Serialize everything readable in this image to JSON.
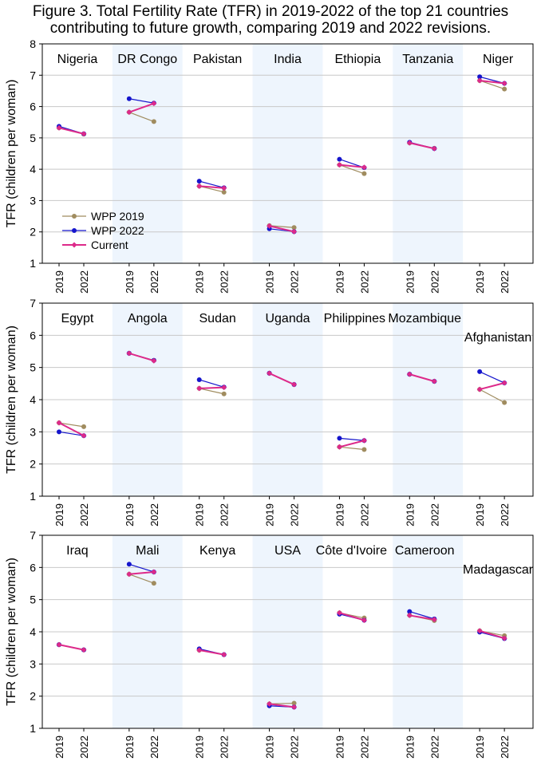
{
  "figure": {
    "title_line1": "Figure 3. Total Fertility Rate (TFR) in 2019-2022 of the top 21 countries",
    "title_line2": "contributing to future growth, comparing 2019 and 2022 revisions."
  },
  "colors": {
    "wpp2019": "#a08c5f",
    "wpp2022": "#1515cc",
    "current": "#dd2a8a",
    "band": "#eef5fd",
    "grid": "#c8c8c8",
    "axis": "#000000"
  },
  "chart_data": [
    {
      "type": "line",
      "ylabel": "TFR (children per woman)",
      "ylim": [
        1,
        8
      ],
      "yticks": [
        "1",
        "2",
        "3",
        "4",
        "5",
        "6",
        "7",
        "8"
      ],
      "x_tick_labels": [
        "2019",
        "2022"
      ],
      "legend": [
        "WPP 2019",
        "WPP 2022",
        "Current"
      ],
      "legend_position": "lower-left",
      "countries": [
        {
          "name": "Nigeria",
          "wpp2019": [
            5.32,
            5.12
          ],
          "wpp2022": [
            5.37,
            5.13
          ],
          "current": [
            5.32,
            5.13
          ]
        },
        {
          "name": "DR Congo",
          "wpp2019": [
            5.82,
            5.52
          ],
          "wpp2022": [
            6.25,
            6.11
          ],
          "current": [
            5.82,
            6.1
          ]
        },
        {
          "name": "Pakistan",
          "wpp2019": [
            3.46,
            3.27
          ],
          "wpp2022": [
            3.62,
            3.41
          ],
          "current": [
            3.46,
            3.4
          ]
        },
        {
          "name": "India",
          "wpp2019": [
            2.2,
            2.14
          ],
          "wpp2022": [
            2.1,
            2.01
          ],
          "current": [
            2.19,
            2.01
          ]
        },
        {
          "name": "Ethiopia",
          "wpp2019": [
            4.14,
            3.86
          ],
          "wpp2022": [
            4.32,
            4.05
          ],
          "current": [
            4.14,
            4.06
          ]
        },
        {
          "name": "Tanzania",
          "wpp2019": [
            4.84,
            4.67
          ],
          "wpp2022": [
            4.86,
            4.66
          ],
          "current": [
            4.84,
            4.66
          ]
        },
        {
          "name": "Niger",
          "wpp2019": [
            6.83,
            6.56
          ],
          "wpp2022": [
            6.95,
            6.74
          ],
          "current": [
            6.83,
            6.74
          ]
        }
      ]
    },
    {
      "type": "line",
      "ylabel": "TFR (children per woman)",
      "ylim": [
        1,
        7
      ],
      "yticks": [
        "1",
        "2",
        "3",
        "4",
        "5",
        "6",
        "7"
      ],
      "x_tick_labels": [
        "2019",
        "2022"
      ],
      "countries": [
        {
          "name": "Egypt",
          "wpp2019": [
            3.28,
            3.16
          ],
          "wpp2022": [
            3.0,
            2.88
          ],
          "current": [
            3.28,
            2.88
          ]
        },
        {
          "name": "Angola",
          "wpp2019": [
            5.44,
            5.22
          ],
          "wpp2022": [
            5.44,
            5.22
          ],
          "current": [
            5.44,
            5.21
          ]
        },
        {
          "name": "Sudan",
          "wpp2019": [
            4.35,
            4.18
          ],
          "wpp2022": [
            4.62,
            4.39
          ],
          "current": [
            4.35,
            4.38
          ]
        },
        {
          "name": "Uganda",
          "wpp2019": [
            4.82,
            4.47
          ],
          "wpp2022": [
            4.82,
            4.47
          ],
          "current": [
            4.82,
            4.47
          ]
        },
        {
          "name": "Philippines",
          "wpp2019": [
            2.53,
            2.45
          ],
          "wpp2022": [
            2.8,
            2.73
          ],
          "current": [
            2.53,
            2.73
          ]
        },
        {
          "name": "Mozambique",
          "wpp2019": [
            4.79,
            4.57
          ],
          "wpp2022": [
            4.79,
            4.57
          ],
          "current": [
            4.79,
            4.57
          ]
        },
        {
          "name": "Afghanistan",
          "wpp2019": [
            4.32,
            3.91
          ],
          "wpp2022": [
            4.87,
            4.52
          ],
          "current": [
            4.32,
            4.52
          ]
        }
      ]
    },
    {
      "type": "line",
      "ylabel": "TFR (children per woman)",
      "ylim": [
        1,
        7
      ],
      "yticks": [
        "1",
        "2",
        "3",
        "4",
        "5",
        "6",
        "7"
      ],
      "x_tick_labels": [
        "2019",
        "2022"
      ],
      "countries": [
        {
          "name": "Iraq",
          "wpp2019": [
            3.6,
            3.44
          ],
          "wpp2022": [
            3.6,
            3.44
          ],
          "current": [
            3.6,
            3.44
          ]
        },
        {
          "name": "Mali",
          "wpp2019": [
            5.79,
            5.51
          ],
          "wpp2022": [
            6.1,
            5.86
          ],
          "current": [
            5.79,
            5.86
          ]
        },
        {
          "name": "Kenya",
          "wpp2019": [
            3.43,
            3.29
          ],
          "wpp2022": [
            3.47,
            3.29
          ],
          "current": [
            3.43,
            3.29
          ]
        },
        {
          "name": "USA",
          "wpp2019": [
            1.76,
            1.78
          ],
          "wpp2022": [
            1.7,
            1.66
          ],
          "current": [
            1.76,
            1.66
          ]
        },
        {
          "name": "Côte d'Ivoire",
          "wpp2019": [
            4.59,
            4.43
          ],
          "wpp2022": [
            4.55,
            4.36
          ],
          "current": [
            4.59,
            4.36
          ]
        },
        {
          "name": "Cameroon",
          "wpp2019": [
            4.51,
            4.35
          ],
          "wpp2022": [
            4.63,
            4.4
          ],
          "current": [
            4.51,
            4.38
          ]
        },
        {
          "name": "Madagascar",
          "wpp2019": [
            4.03,
            3.88
          ],
          "wpp2022": [
            3.99,
            3.79
          ],
          "current": [
            4.03,
            3.8
          ]
        }
      ]
    }
  ]
}
